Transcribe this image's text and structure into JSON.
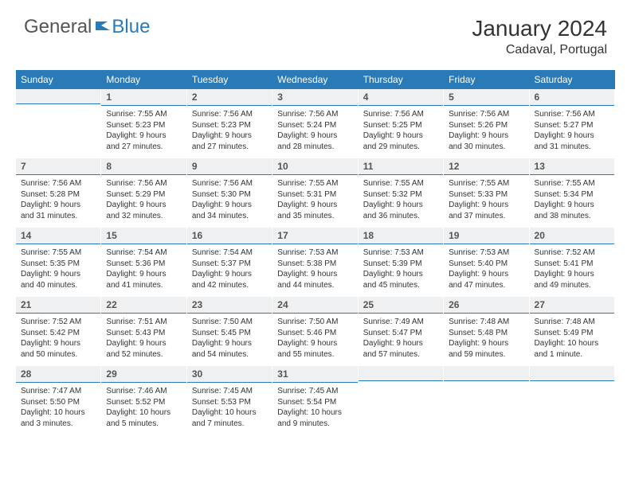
{
  "logo": {
    "text_gray": "General",
    "text_blue": "Blue",
    "flag_color": "#2a7ab8"
  },
  "header": {
    "title": "January 2024",
    "location": "Cadaval, Portugal"
  },
  "colors": {
    "header_bg": "#2a7ab8",
    "header_text": "#ffffff",
    "daynum_bg": "#eef0f2",
    "daynum_border": "#2a7ab8",
    "text": "#333333"
  },
  "weekdays": [
    "Sunday",
    "Monday",
    "Tuesday",
    "Wednesday",
    "Thursday",
    "Friday",
    "Saturday"
  ],
  "weeks": [
    [
      null,
      {
        "n": "1",
        "sr": "7:55 AM",
        "ss": "5:23 PM",
        "dl": "9 hours and 27 minutes."
      },
      {
        "n": "2",
        "sr": "7:56 AM",
        "ss": "5:23 PM",
        "dl": "9 hours and 27 minutes."
      },
      {
        "n": "3",
        "sr": "7:56 AM",
        "ss": "5:24 PM",
        "dl": "9 hours and 28 minutes."
      },
      {
        "n": "4",
        "sr": "7:56 AM",
        "ss": "5:25 PM",
        "dl": "9 hours and 29 minutes."
      },
      {
        "n": "5",
        "sr": "7:56 AM",
        "ss": "5:26 PM",
        "dl": "9 hours and 30 minutes."
      },
      {
        "n": "6",
        "sr": "7:56 AM",
        "ss": "5:27 PM",
        "dl": "9 hours and 31 minutes."
      }
    ],
    [
      {
        "n": "7",
        "sr": "7:56 AM",
        "ss": "5:28 PM",
        "dl": "9 hours and 31 minutes."
      },
      {
        "n": "8",
        "sr": "7:56 AM",
        "ss": "5:29 PM",
        "dl": "9 hours and 32 minutes."
      },
      {
        "n": "9",
        "sr": "7:56 AM",
        "ss": "5:30 PM",
        "dl": "9 hours and 34 minutes."
      },
      {
        "n": "10",
        "sr": "7:55 AM",
        "ss": "5:31 PM",
        "dl": "9 hours and 35 minutes."
      },
      {
        "n": "11",
        "sr": "7:55 AM",
        "ss": "5:32 PM",
        "dl": "9 hours and 36 minutes."
      },
      {
        "n": "12",
        "sr": "7:55 AM",
        "ss": "5:33 PM",
        "dl": "9 hours and 37 minutes."
      },
      {
        "n": "13",
        "sr": "7:55 AM",
        "ss": "5:34 PM",
        "dl": "9 hours and 38 minutes."
      }
    ],
    [
      {
        "n": "14",
        "sr": "7:55 AM",
        "ss": "5:35 PM",
        "dl": "9 hours and 40 minutes."
      },
      {
        "n": "15",
        "sr": "7:54 AM",
        "ss": "5:36 PM",
        "dl": "9 hours and 41 minutes."
      },
      {
        "n": "16",
        "sr": "7:54 AM",
        "ss": "5:37 PM",
        "dl": "9 hours and 42 minutes."
      },
      {
        "n": "17",
        "sr": "7:53 AM",
        "ss": "5:38 PM",
        "dl": "9 hours and 44 minutes."
      },
      {
        "n": "18",
        "sr": "7:53 AM",
        "ss": "5:39 PM",
        "dl": "9 hours and 45 minutes."
      },
      {
        "n": "19",
        "sr": "7:53 AM",
        "ss": "5:40 PM",
        "dl": "9 hours and 47 minutes."
      },
      {
        "n": "20",
        "sr": "7:52 AM",
        "ss": "5:41 PM",
        "dl": "9 hours and 49 minutes."
      }
    ],
    [
      {
        "n": "21",
        "sr": "7:52 AM",
        "ss": "5:42 PM",
        "dl": "9 hours and 50 minutes."
      },
      {
        "n": "22",
        "sr": "7:51 AM",
        "ss": "5:43 PM",
        "dl": "9 hours and 52 minutes."
      },
      {
        "n": "23",
        "sr": "7:50 AM",
        "ss": "5:45 PM",
        "dl": "9 hours and 54 minutes."
      },
      {
        "n": "24",
        "sr": "7:50 AM",
        "ss": "5:46 PM",
        "dl": "9 hours and 55 minutes."
      },
      {
        "n": "25",
        "sr": "7:49 AM",
        "ss": "5:47 PM",
        "dl": "9 hours and 57 minutes."
      },
      {
        "n": "26",
        "sr": "7:48 AM",
        "ss": "5:48 PM",
        "dl": "9 hours and 59 minutes."
      },
      {
        "n": "27",
        "sr": "7:48 AM",
        "ss": "5:49 PM",
        "dl": "10 hours and 1 minute."
      }
    ],
    [
      {
        "n": "28",
        "sr": "7:47 AM",
        "ss": "5:50 PM",
        "dl": "10 hours and 3 minutes."
      },
      {
        "n": "29",
        "sr": "7:46 AM",
        "ss": "5:52 PM",
        "dl": "10 hours and 5 minutes."
      },
      {
        "n": "30",
        "sr": "7:45 AM",
        "ss": "5:53 PM",
        "dl": "10 hours and 7 minutes."
      },
      {
        "n": "31",
        "sr": "7:45 AM",
        "ss": "5:54 PM",
        "dl": "10 hours and 9 minutes."
      },
      null,
      null,
      null
    ]
  ],
  "labels": {
    "sunrise": "Sunrise: ",
    "sunset": "Sunset: ",
    "daylight": "Daylight: "
  }
}
